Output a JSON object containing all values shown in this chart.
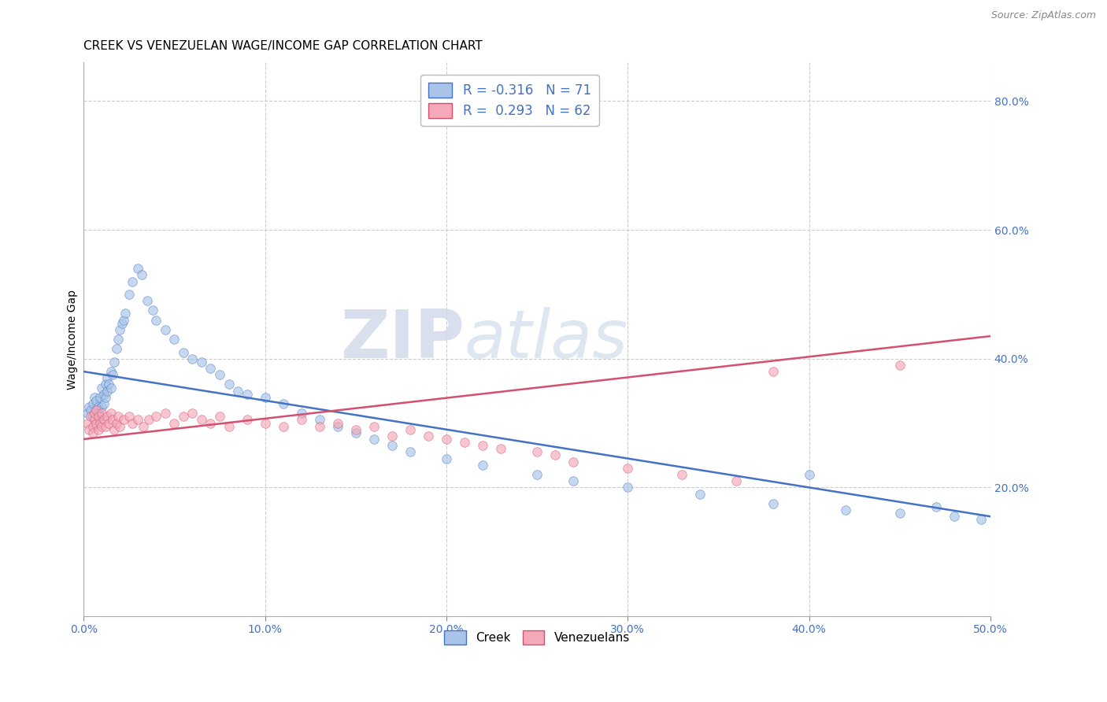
{
  "title": "CREEK VS VENEZUELAN WAGE/INCOME GAP CORRELATION CHART",
  "source": "Source: ZipAtlas.com",
  "ylabel": "Wage/Income Gap",
  "xlim": [
    0.0,
    0.5
  ],
  "ylim": [
    0.0,
    0.86
  ],
  "xtick_labels": [
    "0.0%",
    "10.0%",
    "20.0%",
    "30.0%",
    "40.0%",
    "50.0%"
  ],
  "xtick_vals": [
    0.0,
    0.1,
    0.2,
    0.3,
    0.4,
    0.5
  ],
  "ytick_labels_right": [
    "20.0%",
    "40.0%",
    "60.0%",
    "80.0%"
  ],
  "ytick_vals_right": [
    0.2,
    0.4,
    0.6,
    0.8
  ],
  "creek_color": "#a8c4e8",
  "venezuelan_color": "#f4a8b8",
  "creek_line_color": "#4472c4",
  "venezuelan_line_color": "#d45070",
  "legend_r_creek": "R = -0.316",
  "legend_n_creek": "N = 71",
  "legend_r_ven": "R =  0.293",
  "legend_n_ven": "N = 62",
  "watermark_zip": "ZIP",
  "watermark_atlas": "atlas",
  "creek_line_x": [
    0.0,
    0.5
  ],
  "creek_line_y": [
    0.38,
    0.155
  ],
  "ven_line_x": [
    0.0,
    0.5
  ],
  "ven_line_y": [
    0.275,
    0.435
  ],
  "title_fontsize": 11,
  "axis_label_fontsize": 10,
  "tick_fontsize": 10,
  "marker_size": 70,
  "marker_alpha": 0.65,
  "background_color": "#ffffff",
  "grid_color": "#cccccc",
  "grid_style": "--",
  "creek_points_x": [
    0.002,
    0.003,
    0.004,
    0.005,
    0.005,
    0.006,
    0.006,
    0.007,
    0.007,
    0.008,
    0.008,
    0.009,
    0.009,
    0.01,
    0.01,
    0.011,
    0.011,
    0.012,
    0.012,
    0.013,
    0.013,
    0.014,
    0.015,
    0.015,
    0.016,
    0.017,
    0.018,
    0.019,
    0.02,
    0.021,
    0.022,
    0.023,
    0.025,
    0.027,
    0.03,
    0.032,
    0.035,
    0.038,
    0.04,
    0.045,
    0.05,
    0.055,
    0.06,
    0.065,
    0.07,
    0.075,
    0.08,
    0.085,
    0.09,
    0.1,
    0.11,
    0.12,
    0.13,
    0.14,
    0.15,
    0.16,
    0.17,
    0.18,
    0.2,
    0.22,
    0.25,
    0.27,
    0.3,
    0.34,
    0.38,
    0.4,
    0.42,
    0.45,
    0.47,
    0.48,
    0.495
  ],
  "creek_points_y": [
    0.315,
    0.325,
    0.32,
    0.33,
    0.31,
    0.34,
    0.305,
    0.32,
    0.335,
    0.325,
    0.315,
    0.34,
    0.31,
    0.355,
    0.325,
    0.345,
    0.33,
    0.36,
    0.34,
    0.37,
    0.35,
    0.36,
    0.38,
    0.355,
    0.375,
    0.395,
    0.415,
    0.43,
    0.445,
    0.455,
    0.46,
    0.47,
    0.5,
    0.52,
    0.54,
    0.53,
    0.49,
    0.475,
    0.46,
    0.445,
    0.43,
    0.41,
    0.4,
    0.395,
    0.385,
    0.375,
    0.36,
    0.35,
    0.345,
    0.34,
    0.33,
    0.315,
    0.305,
    0.295,
    0.285,
    0.275,
    0.265,
    0.255,
    0.245,
    0.235,
    0.22,
    0.21,
    0.2,
    0.19,
    0.175,
    0.22,
    0.165,
    0.16,
    0.17,
    0.155,
    0.15
  ],
  "ven_points_x": [
    0.002,
    0.003,
    0.004,
    0.005,
    0.005,
    0.006,
    0.006,
    0.007,
    0.007,
    0.008,
    0.008,
    0.009,
    0.01,
    0.01,
    0.011,
    0.012,
    0.013,
    0.014,
    0.015,
    0.016,
    0.017,
    0.018,
    0.019,
    0.02,
    0.022,
    0.025,
    0.027,
    0.03,
    0.033,
    0.036,
    0.04,
    0.045,
    0.05,
    0.055,
    0.06,
    0.065,
    0.07,
    0.075,
    0.08,
    0.09,
    0.1,
    0.11,
    0.12,
    0.13,
    0.14,
    0.15,
    0.16,
    0.17,
    0.18,
    0.19,
    0.2,
    0.21,
    0.22,
    0.23,
    0.25,
    0.26,
    0.27,
    0.3,
    0.33,
    0.36,
    0.38,
    0.45
  ],
  "ven_points_y": [
    0.3,
    0.29,
    0.31,
    0.295,
    0.285,
    0.305,
    0.315,
    0.3,
    0.32,
    0.29,
    0.31,
    0.3,
    0.315,
    0.295,
    0.305,
    0.295,
    0.31,
    0.3,
    0.315,
    0.305,
    0.29,
    0.3,
    0.31,
    0.295,
    0.305,
    0.31,
    0.3,
    0.305,
    0.295,
    0.305,
    0.31,
    0.315,
    0.3,
    0.31,
    0.315,
    0.305,
    0.3,
    0.31,
    0.295,
    0.305,
    0.3,
    0.295,
    0.305,
    0.295,
    0.3,
    0.29,
    0.295,
    0.28,
    0.29,
    0.28,
    0.275,
    0.27,
    0.265,
    0.26,
    0.255,
    0.25,
    0.24,
    0.23,
    0.22,
    0.21,
    0.38,
    0.39
  ]
}
